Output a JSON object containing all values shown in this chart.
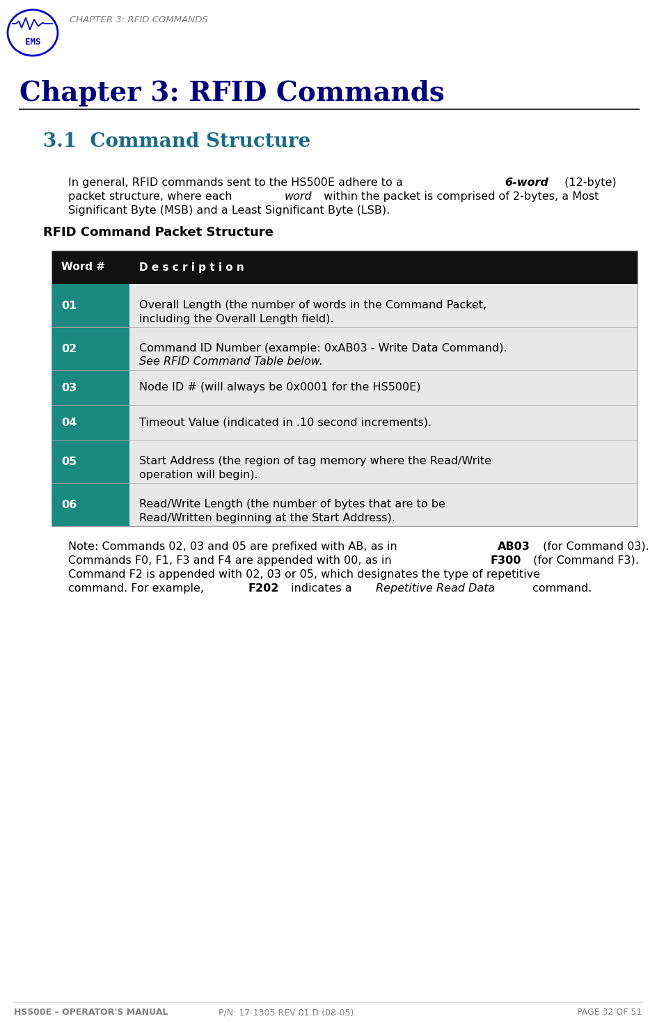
{
  "page_bg": "#ffffff",
  "header_text": "CHAPTER 3: RFID COMMANDS",
  "header_text_color": "#808080",
  "chapter_title": "Chapter 3: RFID Commands",
  "chapter_title_color": "#000080",
  "chapter_title_size": 28,
  "section_title": "3.1  Command Structure",
  "section_title_color": "#1a6b8a",
  "section_title_size": 20,
  "table_title": "RFID Command Packet Structure",
  "table_title_size": 13,
  "table_header_bg": "#111111",
  "table_header_text": "#ffffff",
  "table_col1_bg": "#1a8a80",
  "table_col1_text": "#ffffff",
  "table_row_bg": "#e8e8e8",
  "table_divider_color": "#aaaaaa",
  "table_rows": [
    [
      "01",
      "Overall Length (the number of words in the Command Packet,\nincluding the Overall Length field)."
    ],
    [
      "02",
      "Command ID Number (example: 0xAB03 - Write Data Command).\nSee RFID Command Table below."
    ],
    [
      "03",
      "Node ID # (will always be 0x0001 for the HS500E)"
    ],
    [
      "04",
      "Timeout Value (indicated in .10 second increments)."
    ],
    [
      "05",
      "Start Address (the region of tag memory where the Read/Write\noperation will begin)."
    ],
    [
      "06",
      "Read/Write Length (the number of bytes that are to be\nRead/Written beginning at the Start Address)."
    ]
  ],
  "footer_text_bold": "HS500E – OPERATOR'S MANUAL",
  "footer_text_normal": "  P/N: 17-1305 REV 01.D (08-05)",
  "footer_page": "PAGE 32 OF 51",
  "footer_color": "#808080"
}
